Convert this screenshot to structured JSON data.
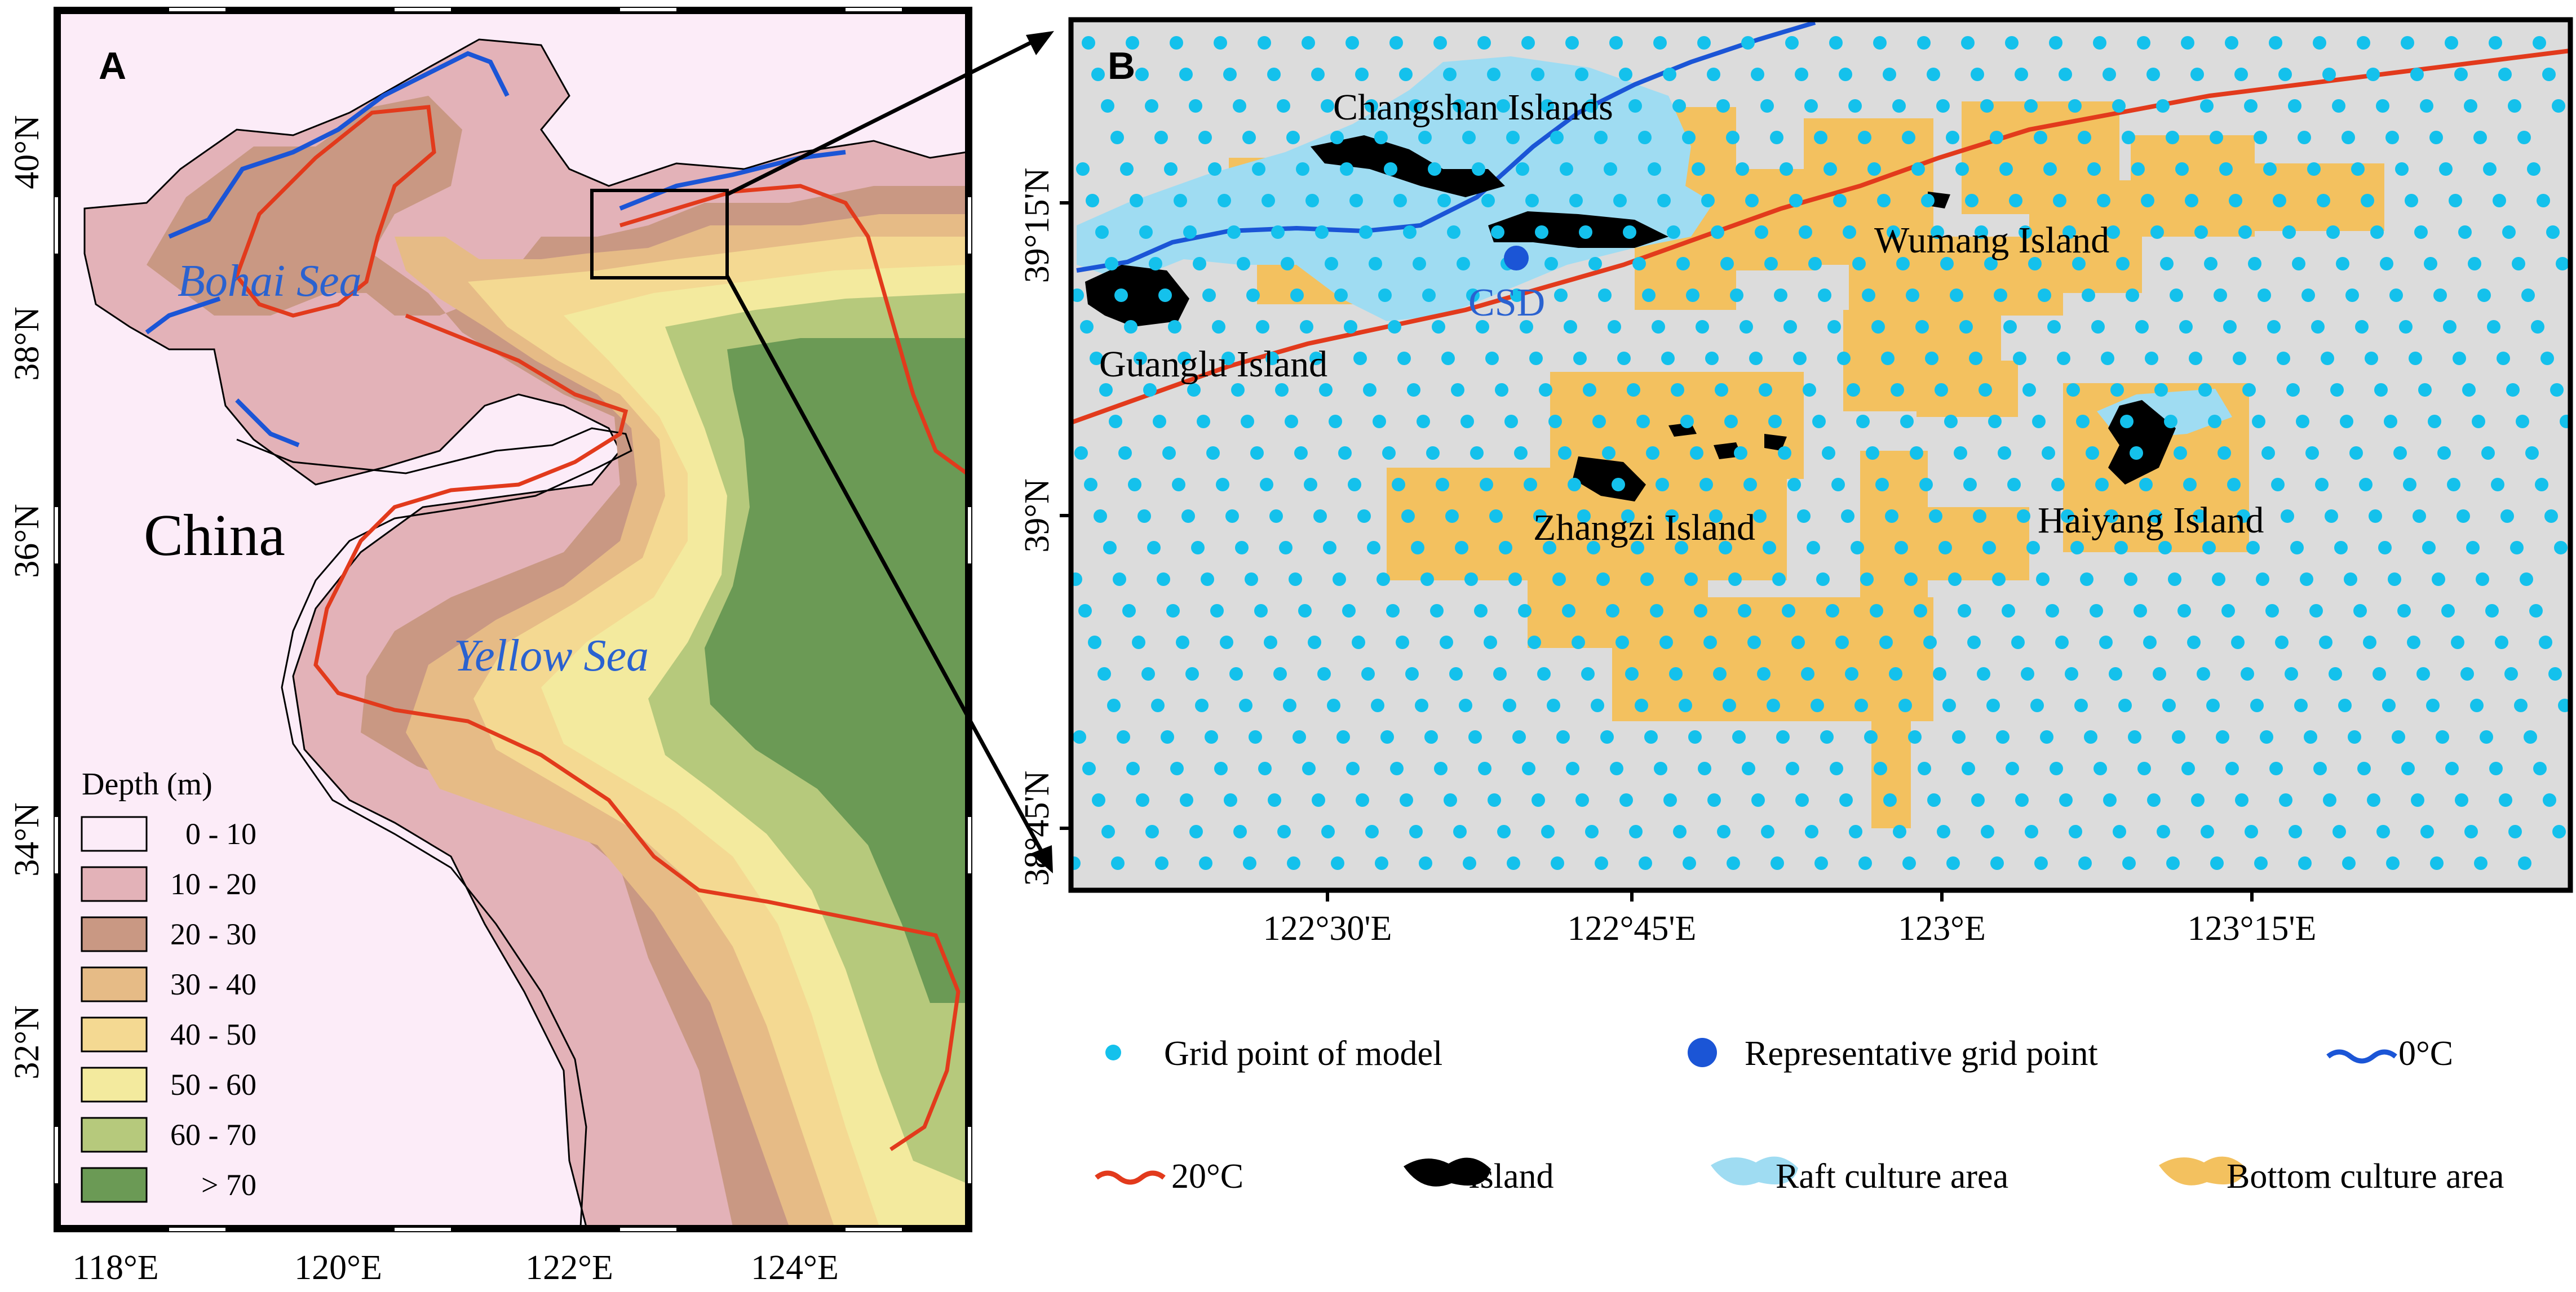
{
  "panel_a": {
    "label": "A",
    "seas": {
      "bohai": "Bohai Sea",
      "yellow": "Yellow Sea"
    },
    "country": "China",
    "lat_ticks": [
      "40°N",
      "38°N",
      "36°N",
      "34°N",
      "32°N"
    ],
    "lon_ticks": [
      "118°E",
      "120°E",
      "122°E",
      "124°E"
    ],
    "legend": {
      "title": "Depth (m)",
      "items": [
        {
          "label": "0 - 10",
          "color": "#fcecf8"
        },
        {
          "label": "10 - 20",
          "color": "#e3b2b8"
        },
        {
          "label": "20 - 30",
          "color": "#c99883"
        },
        {
          "label": "30 - 40",
          "color": "#e6bb86"
        },
        {
          "label": "40 - 50",
          "color": "#f4d992"
        },
        {
          "label": "50 - 60",
          "color": "#f3ea9e"
        },
        {
          "label": "60 - 70",
          "color": "#b6c97c"
        },
        {
          "label": "> 70",
          "color": "#6b9a55"
        }
      ]
    }
  },
  "panel_b": {
    "label": "B",
    "places": {
      "changshan": "Changshan Islands",
      "wumang": "Wumang Island",
      "guanglu": "Guanglu Island",
      "zhangzi": "Zhangzi Island",
      "haiyang": "Haiyang Island",
      "csd": "CSD"
    },
    "lat_ticks": [
      "39°15'N",
      "39°N",
      "38°45'N"
    ],
    "lon_ticks": [
      "122°30'E",
      "122°45'E",
      "123°E",
      "123°15'E"
    ]
  },
  "legend_b": {
    "grid_point": "Grid point of model",
    "rep_point": "Representative grid point",
    "zero": "0°C",
    "twenty": "20°C",
    "island": "Island",
    "raft": "Raft culture area",
    "bottom": "Bottom culture area"
  },
  "colors": {
    "isotherm_0": "#1b55d6",
    "isotherm_20": "#e23a1c",
    "grid_point": "#14c1ec",
    "rep_point": "#1b55d6",
    "raft": "#9fdcf2",
    "bottom": "#f3c15f",
    "island": "#000000",
    "land": "#fcecf8",
    "sea_b": "#dcdcdc"
  }
}
